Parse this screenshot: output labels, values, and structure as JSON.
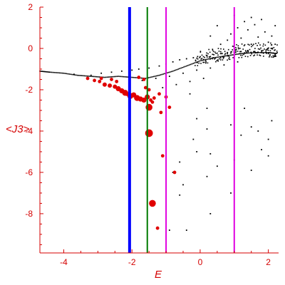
{
  "chart_data": {
    "type": "scatter",
    "title": "",
    "xlabel": "E",
    "ylabel": "<J3>",
    "xlim": [
      -4.7,
      2.3
    ],
    "ylim": [
      -9.9,
      2.0
    ],
    "grid": false,
    "legend": "none",
    "x_ticks": [
      -4,
      -2,
      0,
      2
    ],
    "y_ticks": [
      -8,
      -6,
      -4,
      -2,
      0,
      2
    ],
    "colors": {
      "axis": "#d40000",
      "tick_text": "#d40000",
      "dots": "#000000",
      "red_points": "#e00000",
      "line_blue": "#0000ff",
      "line_green": "#007a00",
      "line_magenta": "#e000e0"
    },
    "vertical_lines": [
      {
        "x": -2.07,
        "color": "#0000ff",
        "weight": "thick"
      },
      {
        "x": -1.55,
        "color": "#007a00",
        "weight": "normal"
      },
      {
        "x": -1.0,
        "color": "#e000e0",
        "weight": "normal"
      },
      {
        "x": 1.0,
        "color": "#e000e0",
        "weight": "normal"
      }
    ],
    "black_band": {
      "description_free": true,
      "x": [
        -4.7,
        -4.4,
        -4.0,
        -3.6,
        -3.2,
        -2.8,
        -2.4,
        -2.0,
        -1.6,
        -1.2,
        -0.8,
        -0.4,
        0.0,
        0.4,
        0.8,
        1.2,
        1.6,
        2.0,
        2.25
      ],
      "y": [
        -1.1,
        -1.15,
        -1.2,
        -1.3,
        -1.35,
        -1.4,
        -1.35,
        -1.4,
        -1.45,
        -1.3,
        -1.1,
        -0.85,
        -0.6,
        -0.45,
        -0.35,
        -0.25,
        -0.2,
        -0.2,
        -0.25
      ]
    },
    "black_points": [
      {
        "x": -3.7,
        "y": -1.25
      },
      {
        "x": -3.2,
        "y": -1.3
      },
      {
        "x": -2.9,
        "y": -1.2
      },
      {
        "x": -2.6,
        "y": -1.15
      },
      {
        "x": -2.3,
        "y": -1.1
      },
      {
        "x": -2.0,
        "y": -1.05
      },
      {
        "x": -1.8,
        "y": -1.0
      },
      {
        "x": -1.5,
        "y": -0.95
      },
      {
        "x": -1.2,
        "y": -0.85
      },
      {
        "x": -1.0,
        "y": -0.75
      },
      {
        "x": -0.8,
        "y": -0.65
      },
      {
        "x": -0.6,
        "y": -0.55
      },
      {
        "x": -0.4,
        "y": -0.5
      },
      {
        "x": -0.2,
        "y": -0.45
      },
      {
        "x": 0.0,
        "y": -0.4
      },
      {
        "x": 0.2,
        "y": -0.35
      },
      {
        "x": 0.4,
        "y": -0.3
      },
      {
        "x": 0.6,
        "y": -0.25
      },
      {
        "x": 0.8,
        "y": -0.2
      },
      {
        "x": 1.0,
        "y": -0.2
      },
      {
        "x": 1.2,
        "y": -0.15
      },
      {
        "x": 1.4,
        "y": -0.1
      },
      {
        "x": 1.6,
        "y": -0.15
      },
      {
        "x": 1.8,
        "y": -0.2
      },
      {
        "x": 2.0,
        "y": -0.25
      },
      {
        "x": 2.2,
        "y": -0.3
      },
      {
        "x": -1.7,
        "y": -1.55
      },
      {
        "x": -1.3,
        "y": -1.45
      },
      {
        "x": -0.9,
        "y": -1.35
      },
      {
        "x": -0.5,
        "y": -1.2
      },
      {
        "x": -0.1,
        "y": -1.05
      },
      {
        "x": 0.3,
        "y": -0.95
      },
      {
        "x": 0.7,
        "y": -0.8
      },
      {
        "x": 1.1,
        "y": -0.65
      },
      {
        "x": -1.1,
        "y": -1.9
      },
      {
        "x": -0.7,
        "y": -1.75
      },
      {
        "x": -0.3,
        "y": -1.6
      },
      {
        "x": 0.1,
        "y": -1.45
      },
      {
        "x": 0.6,
        "y": 0.2
      },
      {
        "x": 0.8,
        "y": 0.4
      },
      {
        "x": 0.9,
        "y": 0.7
      },
      {
        "x": 1.1,
        "y": 1.0
      },
      {
        "x": 1.3,
        "y": 1.3
      },
      {
        "x": 1.4,
        "y": 0.9
      },
      {
        "x": 1.6,
        "y": 1.15
      },
      {
        "x": 1.7,
        "y": 0.55
      },
      {
        "x": 1.9,
        "y": 0.8
      },
      {
        "x": 2.0,
        "y": 0.3
      },
      {
        "x": 2.1,
        "y": 0.6
      },
      {
        "x": 2.2,
        "y": 1.1
      },
      {
        "x": 1.2,
        "y": 0.5
      },
      {
        "x": 1.5,
        "y": 0.2
      },
      {
        "x": 1.8,
        "y": 1.4
      },
      {
        "x": 2.2,
        "y": 0.2
      },
      {
        "x": 0.3,
        "y": 0.6
      },
      {
        "x": 0.5,
        "y": 1.1
      },
      {
        "x": 1.0,
        "y": 1.6
      },
      {
        "x": 1.5,
        "y": 1.5
      },
      {
        "x": -0.3,
        "y": -2.2
      },
      {
        "x": 0.2,
        "y": -2.9
      },
      {
        "x": 1.3,
        "y": -2.9
      },
      {
        "x": 2.1,
        "y": -3.5
      },
      {
        "x": -0.1,
        "y": -3.4
      },
      {
        "x": 0.2,
        "y": -3.9
      },
      {
        "x": 0.9,
        "y": -3.7
      },
      {
        "x": 1.5,
        "y": -3.8
      },
      {
        "x": -0.2,
        "y": -4.4
      },
      {
        "x": 1.2,
        "y": -4.2
      },
      {
        "x": 1.7,
        "y": -4.0
      },
      {
        "x": 2.0,
        "y": -4.4
      },
      {
        "x": -0.1,
        "y": -5.0
      },
      {
        "x": 0.3,
        "y": -5.1
      },
      {
        "x": 1.0,
        "y": -5.4
      },
      {
        "x": 1.8,
        "y": -4.9
      },
      {
        "x": -0.6,
        "y": -5.5
      },
      {
        "x": 0.5,
        "y": -5.7
      },
      {
        "x": 1.5,
        "y": -5.9
      },
      {
        "x": 2.0,
        "y": -5.2
      },
      {
        "x": -0.8,
        "y": -6.0
      },
      {
        "x": -0.5,
        "y": -6.6
      },
      {
        "x": 0.2,
        "y": -6.2
      },
      {
        "x": 0.9,
        "y": -7.0
      },
      {
        "x": -0.6,
        "y": -7.1
      },
      {
        "x": 0.3,
        "y": -8.0
      },
      {
        "x": -0.9,
        "y": -8.8
      },
      {
        "x": -0.4,
        "y": -8.8
      }
    ],
    "red_points": [
      {
        "x": -3.3,
        "y": -1.45,
        "size": 1
      },
      {
        "x": -3.1,
        "y": -1.55,
        "size": 1
      },
      {
        "x": -2.95,
        "y": -1.6,
        "size": 1
      },
      {
        "x": -2.8,
        "y": -1.75,
        "size": 1.5
      },
      {
        "x": -2.65,
        "y": -1.8,
        "size": 1.5
      },
      {
        "x": -2.5,
        "y": -1.85,
        "size": 1.5
      },
      {
        "x": -2.4,
        "y": -1.95,
        "size": 2
      },
      {
        "x": -2.3,
        "y": -2.05,
        "size": 2
      },
      {
        "x": -2.2,
        "y": -2.15,
        "size": 2.5
      },
      {
        "x": -2.15,
        "y": -2.2,
        "size": 1.5
      },
      {
        "x": -2.05,
        "y": -2.3,
        "size": 2.5
      },
      {
        "x": -1.95,
        "y": -2.25,
        "size": 2
      },
      {
        "x": -1.85,
        "y": -2.4,
        "size": 2.5
      },
      {
        "x": -1.75,
        "y": -2.45,
        "size": 2
      },
      {
        "x": -1.65,
        "y": -2.5,
        "size": 2
      },
      {
        "x": -2.6,
        "y": -1.5,
        "size": 1
      },
      {
        "x": -2.45,
        "y": -1.6,
        "size": 1
      },
      {
        "x": -2.9,
        "y": -1.45,
        "size": 1
      },
      {
        "x": -1.8,
        "y": -1.4,
        "size": 1
      },
      {
        "x": -1.65,
        "y": -1.5,
        "size": 1
      },
      {
        "x": -1.6,
        "y": -1.9,
        "size": 1
      },
      {
        "x": -1.5,
        "y": -2.0,
        "size": 1
      },
      {
        "x": -1.45,
        "y": -2.5,
        "size": 1
      },
      {
        "x": -1.35,
        "y": -2.4,
        "size": 1
      },
      {
        "x": -1.55,
        "y": -2.35,
        "size": 2
      },
      {
        "x": -1.5,
        "y": -2.85,
        "size": 3
      },
      {
        "x": -1.4,
        "y": -2.6,
        "size": 1
      },
      {
        "x": -1.2,
        "y": -2.2,
        "size": 1
      },
      {
        "x": -1.0,
        "y": -2.35,
        "size": 1
      },
      {
        "x": -0.9,
        "y": -2.85,
        "size": 1
      },
      {
        "x": -1.15,
        "y": -3.1,
        "size": 1
      },
      {
        "x": -1.5,
        "y": -4.1,
        "size": 3.5
      },
      {
        "x": -1.1,
        "y": -5.2,
        "size": 1
      },
      {
        "x": -0.75,
        "y": -6.0,
        "size": 1
      },
      {
        "x": -1.4,
        "y": -7.5,
        "size": 3
      },
      {
        "x": -1.25,
        "y": -8.7,
        "size": 1
      }
    ]
  }
}
